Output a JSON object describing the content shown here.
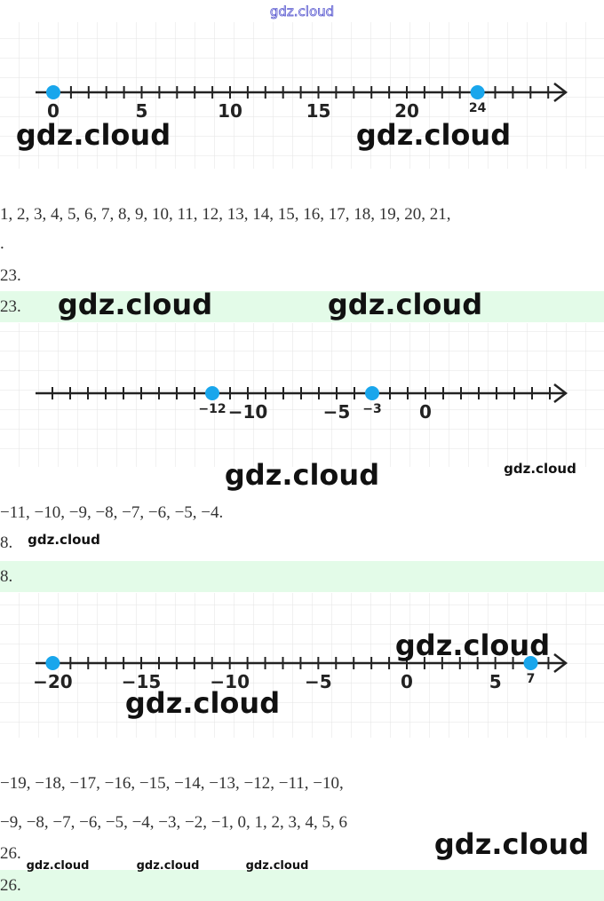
{
  "header": {
    "watermark": "gdz.cloud"
  },
  "number_lines": [
    {
      "labels": [
        {
          "value": 0,
          "label": "0"
        },
        {
          "value": 5,
          "label": "5"
        },
        {
          "value": 10,
          "label": "10"
        },
        {
          "value": 15,
          "label": "15"
        },
        {
          "value": 20,
          "label": "20"
        },
        {
          "value": 24,
          "label": "24"
        }
      ],
      "points": [
        0,
        24
      ]
    },
    {
      "labels": [
        {
          "value": -12,
          "label": "−12"
        },
        {
          "value": -10,
          "label": "−10"
        },
        {
          "value": -5,
          "label": "−5"
        },
        {
          "value": -3,
          "label": "−3"
        },
        {
          "value": 0,
          "label": "0"
        }
      ],
      "points": [
        -12,
        -3
      ]
    },
    {
      "labels": [
        {
          "value": -20,
          "label": "−20"
        },
        {
          "value": -15,
          "label": "−15"
        },
        {
          "value": -10,
          "label": "−10"
        },
        {
          "value": -5,
          "label": "−5"
        },
        {
          "value": 0,
          "label": "0"
        },
        {
          "value": 5,
          "label": "5"
        },
        {
          "value": 7,
          "label": "7"
        }
      ],
      "points": [
        -20,
        7
      ]
    }
  ],
  "watermarks": [
    "gdz.cloud",
    "gdz.cloud",
    "gdz.cloud",
    "gdz.cloud",
    "gdz.cloud",
    "gdz.cloud",
    "gdz.cloud",
    "gdz.cloud",
    "gdz.cloud",
    "gdz.cloud",
    "gdz.cloud",
    "gdz.cloud",
    "gdz.cloud"
  ],
  "text_lines": [
    "1, 2, 3, 4, 5, 6, 7, 8, 9, 10, 11, 12, 13, 14, 15, 16, 17, 18, 19, 20, 21,",
    ".",
    "23.",
    "−11, −10, −9, −8, −7, −6, −5, −4.",
    "8.",
    "−19, −18, −17, −16, −15, −14, −13, −12, −11, −10,",
    "−9, −8, −7, −6, −5, −4, −3, −2, −1, 0, 1, 2, 3, 4, 5, 6",
    "26."
  ],
  "answers": [
    "23.",
    "8.",
    "26."
  ]
}
